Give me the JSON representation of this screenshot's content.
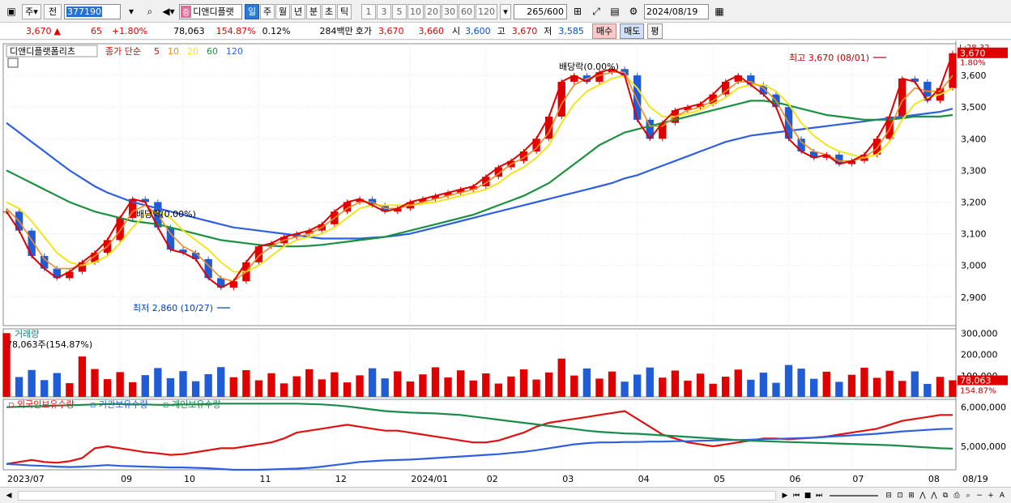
{
  "toolbar": {
    "period_main": "주",
    "prev_label": "전",
    "code": "377190",
    "stock_badge": "증",
    "stock_name": "디앤디플랫",
    "periods": [
      "일",
      "주",
      "월",
      "년",
      "분",
      "초",
      "틱"
    ],
    "active_period": "일",
    "minutes": [
      "1",
      "3",
      "5",
      "10",
      "20",
      "30",
      "60",
      "120"
    ],
    "count_display": "265/600",
    "date": "2024/08/19"
  },
  "info": {
    "price": "3,670",
    "change": "65",
    "change_pct": "+1.80%",
    "volume": "78,063",
    "volume_pct": "154.87%",
    "turnover": "0.12%",
    "trade_value": "284백만",
    "quote_label": "호가",
    "ask": "3,670",
    "bid": "3,660",
    "open_label": "시",
    "open": "3,600",
    "high_label": "고",
    "high": "3,670",
    "low_label": "저",
    "low": "3,585",
    "buy_label": "매수",
    "sell_label": "매도",
    "eval_label": "평"
  },
  "colors": {
    "up": "#e00000",
    "down": "#1f5cd6",
    "ma5": "#e00000",
    "ma10": "#f08c20",
    "ma20": "#f4e41c",
    "ma60": "#1a9140",
    "ma120": "#2d5fe0",
    "foreign": "#e01010",
    "institution": "#2d5fe0",
    "individual": "#1a8c4a"
  },
  "chart_data": [
    {
      "type": "candlestick",
      "title": "디앤디플랫폼리츠",
      "legend_prefix": "종가 단순",
      "series": [
        {
          "name": "5",
          "values": [
            3170,
            3110,
            3030,
            2990,
            2960,
            2980,
            3010,
            3040,
            3080,
            3150,
            3210,
            3200,
            3120,
            3050,
            3040,
            3020,
            2960,
            2930,
            2950,
            3010,
            3060,
            3070,
            3090,
            3100,
            3110,
            3130,
            3170,
            3200,
            3210,
            3190,
            3170,
            3180,
            3200,
            3210,
            3220,
            3230,
            3240,
            3250,
            3280,
            3310,
            3330,
            3360,
            3400,
            3470,
            3580,
            3600,
            3580,
            3610,
            3620,
            3600,
            3460,
            3400,
            3450,
            3490,
            3500,
            3510,
            3540,
            3580,
            3600,
            3570,
            3540,
            3500,
            3400,
            3360,
            3340,
            3350,
            3320,
            3330,
            3350,
            3400,
            3470,
            3590,
            3580,
            3520,
            3560,
            3670
          ]
        },
        {
          "name": "10",
          "values": [
            3180,
            3140,
            3080,
            3020,
            2990,
            2990,
            3000,
            3030,
            3060,
            3110,
            3170,
            3190,
            3160,
            3100,
            3060,
            3040,
            3000,
            2960,
            2950,
            2980,
            3030,
            3060,
            3080,
            3090,
            3100,
            3120,
            3150,
            3180,
            3200,
            3200,
            3180,
            3180,
            3190,
            3200,
            3210,
            3220,
            3230,
            3240,
            3260,
            3290,
            3320,
            3340,
            3370,
            3420,
            3510,
            3570,
            3590,
            3600,
            3610,
            3610,
            3520,
            3440,
            3440,
            3470,
            3490,
            3500,
            3520,
            3550,
            3580,
            3580,
            3560,
            3520,
            3450,
            3390,
            3360,
            3350,
            3330,
            3330,
            3340,
            3370,
            3430,
            3520,
            3560,
            3550,
            3550,
            3600
          ]
        },
        {
          "name": "20",
          "values": [
            3200,
            3180,
            3140,
            3090,
            3040,
            3010,
            3000,
            3010,
            3030,
            3070,
            3120,
            3160,
            3170,
            3150,
            3110,
            3080,
            3050,
            3010,
            2980,
            2980,
            3000,
            3030,
            3060,
            3080,
            3090,
            3100,
            3120,
            3150,
            3180,
            3190,
            3190,
            3190,
            3190,
            3195,
            3200,
            3210,
            3220,
            3230,
            3240,
            3260,
            3290,
            3310,
            3340,
            3380,
            3450,
            3510,
            3550,
            3570,
            3590,
            3600,
            3560,
            3500,
            3470,
            3470,
            3480,
            3490,
            3510,
            3530,
            3560,
            3570,
            3570,
            3550,
            3510,
            3450,
            3410,
            3380,
            3360,
            3350,
            3340,
            3350,
            3390,
            3460,
            3510,
            3530,
            3540,
            3560
          ]
        },
        {
          "name": "60",
          "values": [
            3300,
            3280,
            3260,
            3240,
            3220,
            3200,
            3185,
            3170,
            3160,
            3150,
            3140,
            3135,
            3130,
            3120,
            3110,
            3100,
            3090,
            3080,
            3075,
            3070,
            3065,
            3062,
            3060,
            3060,
            3062,
            3065,
            3070,
            3075,
            3080,
            3085,
            3090,
            3100,
            3110,
            3120,
            3130,
            3140,
            3150,
            3160,
            3175,
            3190,
            3205,
            3220,
            3240,
            3260,
            3290,
            3320,
            3350,
            3380,
            3400,
            3420,
            3430,
            3440,
            3450,
            3460,
            3470,
            3480,
            3490,
            3500,
            3510,
            3520,
            3520,
            3515,
            3505,
            3495,
            3485,
            3475,
            3470,
            3465,
            3460,
            3460,
            3460,
            3465,
            3470,
            3470,
            3470,
            3475
          ]
        },
        {
          "name": "120",
          "values": [
            3450,
            3420,
            3390,
            3360,
            3330,
            3300,
            3275,
            3250,
            3230,
            3215,
            3200,
            3190,
            3180,
            3170,
            3160,
            3150,
            3140,
            3130,
            3120,
            3115,
            3110,
            3105,
            3100,
            3095,
            3090,
            3085,
            3085,
            3085,
            3085,
            3088,
            3090,
            3095,
            3100,
            3110,
            3120,
            3130,
            3140,
            3150,
            3160,
            3170,
            3180,
            3190,
            3200,
            3210,
            3220,
            3230,
            3240,
            3250,
            3260,
            3275,
            3285,
            3300,
            3315,
            3330,
            3345,
            3360,
            3375,
            3390,
            3400,
            3410,
            3415,
            3420,
            3425,
            3430,
            3435,
            3440,
            3445,
            3450,
            3455,
            3460,
            3465,
            3470,
            3475,
            3480,
            3485,
            3495
          ]
        }
      ],
      "ma_labels": [
        "5",
        "10",
        "20",
        "60",
        "120"
      ],
      "y_ticks": [
        2900,
        3000,
        3100,
        3200,
        3300,
        3400,
        3500,
        3600
      ],
      "ylim": [
        2810,
        3700
      ],
      "annotations": {
        "high": "최고 3,670 (08/01)",
        "low": "최저 2,860 (10/27)",
        "div1": "배당락(0.00%)",
        "div2": "배당락(0.00%)"
      },
      "price_tag": "3,670",
      "pct_tag": "1.80%",
      "corner_tag": "L:28.32"
    },
    {
      "type": "bar",
      "title": "거래량",
      "value_label": "78,063주(154.87%)",
      "y_ticks": [
        "100,000",
        "200,000",
        "300,000"
      ],
      "ylim": [
        0,
        320000
      ],
      "last_value": "78,063",
      "last_pct": "154.87%"
    },
    {
      "type": "line",
      "series": [
        {
          "name": "외국인보유수량",
          "values": [
            4550,
            4600,
            4650,
            4600,
            4580,
            4620,
            4700,
            4950,
            5000,
            4950,
            4900,
            4850,
            4820,
            4780,
            4800,
            4850,
            4900,
            4950,
            4950,
            5000,
            5050,
            5100,
            5200,
            5350,
            5400,
            5450,
            5500,
            5550,
            5500,
            5450,
            5400,
            5400,
            5350,
            5300,
            5250,
            5200,
            5150,
            5100,
            5100,
            5150,
            5250,
            5350,
            5500,
            5600,
            5650,
            5700,
            5750,
            5800,
            5850,
            5900,
            5700,
            5500,
            5300,
            5200,
            5100,
            5050,
            5000,
            5050,
            5100,
            5150,
            5200,
            5200,
            5180,
            5200,
            5220,
            5250,
            5300,
            5350,
            5400,
            5450,
            5550,
            5650,
            5700,
            5750,
            5800,
            5800
          ]
        },
        {
          "name": "기관보유수량",
          "values": [
            4550,
            4530,
            4510,
            4500,
            4480,
            4470,
            4480,
            4500,
            4520,
            4500,
            4490,
            4480,
            4470,
            4460,
            4460,
            4450,
            4440,
            4420,
            4400,
            4400,
            4400,
            4410,
            4420,
            4430,
            4450,
            4480,
            4520,
            4560,
            4600,
            4620,
            4640,
            4650,
            4660,
            4680,
            4700,
            4720,
            4740,
            4760,
            4780,
            4800,
            4830,
            4860,
            4900,
            4950,
            5000,
            5050,
            5080,
            5100,
            5100,
            5110,
            5110,
            5120,
            5120,
            5130,
            5130,
            5140,
            5150,
            5160,
            5160,
            5170,
            5180,
            5190,
            5200,
            5210,
            5220,
            5240,
            5260,
            5280,
            5300,
            5320,
            5350,
            5380,
            5400,
            5420,
            5440,
            5450
          ]
        },
        {
          "name": "개인보유수량",
          "values": [
            6000,
            6010,
            6020,
            6030,
            6040,
            6050,
            6060,
            6070,
            6080,
            6080,
            6070,
            6070,
            6060,
            6060,
            6070,
            6070,
            6080,
            6090,
            6090,
            6090,
            6090,
            6090,
            6090,
            6090,
            6080,
            6070,
            6050,
            6020,
            5980,
            5940,
            5900,
            5880,
            5860,
            5850,
            5840,
            5820,
            5800,
            5760,
            5720,
            5680,
            5640,
            5600,
            5560,
            5520,
            5480,
            5440,
            5400,
            5370,
            5350,
            5330,
            5320,
            5300,
            5280,
            5260,
            5240,
            5220,
            5200,
            5180,
            5160,
            5140,
            5130,
            5120,
            5110,
            5100,
            5090,
            5080,
            5070,
            5060,
            5050,
            5040,
            5030,
            5010,
            4990,
            4970,
            4950,
            4940
          ]
        }
      ],
      "y_ticks": [
        "5,000,000",
        "6,000,000"
      ]
    }
  ],
  "x_ticks": [
    "2023/07",
    "09",
    "10",
    "11",
    "12",
    "2024/01",
    "02",
    "03",
    "04",
    "05",
    "06",
    "07",
    "08"
  ],
  "x_tick_pos_index": [
    0,
    9,
    14,
    20,
    26,
    32,
    38,
    44,
    50,
    56,
    62,
    67,
    73
  ],
  "x_end_label": "08/19"
}
